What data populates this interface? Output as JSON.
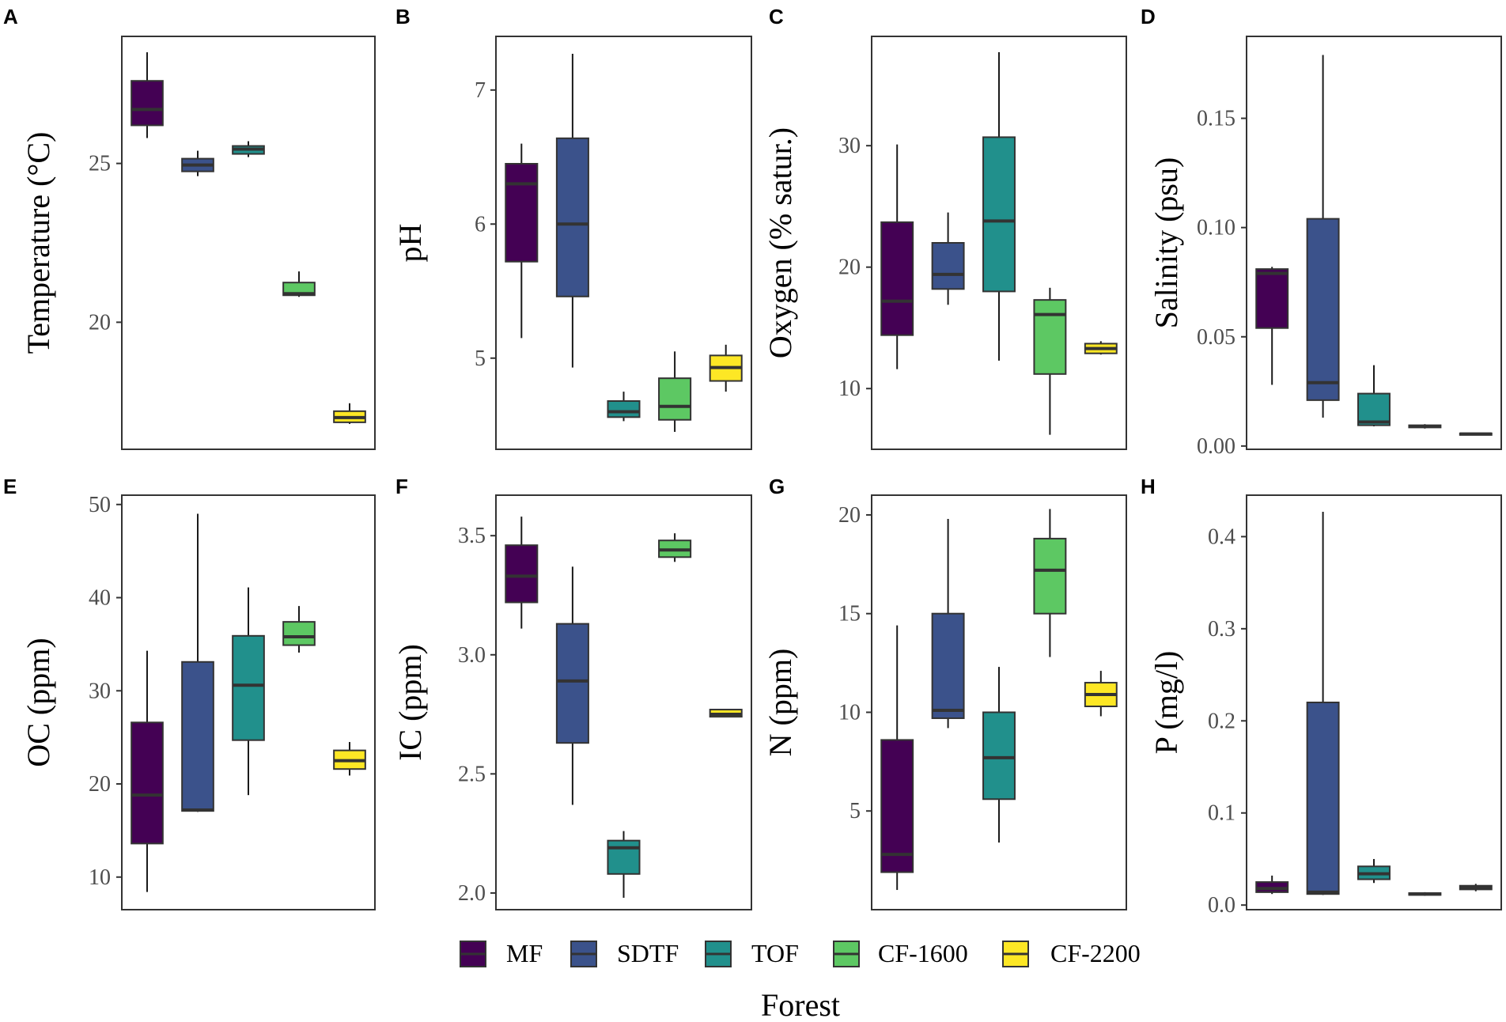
{
  "figure": {
    "x_title": "Forest",
    "legend_title": "",
    "legend_position": "bottom"
  },
  "legend": [
    {
      "name": "MF",
      "color": "#440154"
    },
    {
      "name": "SDTF",
      "color": "#3B528B"
    },
    {
      "name": "TOF",
      "color": "#21908C"
    },
    {
      "name": "CF-1600",
      "color": "#5DC863"
    },
    {
      "name": "CF-2200",
      "color": "#FDE725"
    }
  ],
  "chart_data": [
    {
      "type": "box",
      "letter": "A",
      "ylabel": "Temperature (°C)",
      "ylim": [
        16.0,
        29.0
      ],
      "ticks": [
        20,
        25
      ],
      "tick_labels": [
        "20",
        "25"
      ],
      "categories": [
        "MF",
        "SDTF",
        "TOF",
        "CF-1600",
        "CF-2200"
      ],
      "boxes": [
        {
          "category": "MF",
          "min": 25.8,
          "q1": 26.2,
          "median": 26.7,
          "q3": 27.6,
          "max": 28.5
        },
        {
          "category": "SDTF",
          "min": 24.6,
          "q1": 24.75,
          "median": 24.95,
          "q3": 25.15,
          "max": 25.4
        },
        {
          "category": "TOF",
          "min": 25.2,
          "q1": 25.3,
          "median": 25.45,
          "q3": 25.55,
          "max": 25.7
        },
        {
          "category": "CF-1600",
          "min": 20.8,
          "q1": 20.85,
          "median": 20.9,
          "q3": 21.25,
          "max": 21.6
        },
        {
          "category": "CF-2200",
          "min": 16.8,
          "q1": 16.85,
          "median": 17.0,
          "q3": 17.2,
          "max": 17.45
        }
      ]
    },
    {
      "type": "box",
      "letter": "B",
      "ylabel": "pH",
      "ylim": [
        4.32,
        7.4
      ],
      "ticks": [
        5,
        6,
        7
      ],
      "tick_labels": [
        "5",
        "6",
        "7"
      ],
      "categories": [
        "MF",
        "SDTF",
        "TOF",
        "CF-1600",
        "CF-2200"
      ],
      "boxes": [
        {
          "category": "MF",
          "min": 5.15,
          "q1": 5.72,
          "median": 6.3,
          "q3": 6.45,
          "max": 6.6
        },
        {
          "category": "SDTF",
          "min": 4.93,
          "q1": 5.46,
          "median": 6.0,
          "q3": 6.64,
          "max": 7.27
        },
        {
          "category": "TOF",
          "min": 4.53,
          "q1": 4.56,
          "median": 4.6,
          "q3": 4.68,
          "max": 4.75
        },
        {
          "category": "CF-1600",
          "min": 4.45,
          "q1": 4.54,
          "median": 4.64,
          "q3": 4.85,
          "max": 5.05
        },
        {
          "category": "CF-2200",
          "min": 4.75,
          "q1": 4.83,
          "median": 4.93,
          "q3": 5.02,
          "max": 5.1
        }
      ]
    },
    {
      "type": "box",
      "letter": "C",
      "ylabel": "Oxygen (% satur.)",
      "ylim": [
        5.0,
        39.0
      ],
      "ticks": [
        10,
        20,
        30
      ],
      "tick_labels": [
        "10",
        "20",
        "30"
      ],
      "categories": [
        "MF",
        "SDTF",
        "TOF",
        "CF-1600",
        "CF-2200"
      ],
      "boxes": [
        {
          "category": "MF",
          "min": 11.6,
          "q1": 14.4,
          "median": 17.2,
          "q3": 23.7,
          "max": 30.1
        },
        {
          "category": "SDTF",
          "min": 16.9,
          "q1": 18.2,
          "median": 19.4,
          "q3": 22.0,
          "max": 24.5
        },
        {
          "category": "TOF",
          "min": 12.3,
          "q1": 18.0,
          "median": 23.8,
          "q3": 30.7,
          "max": 37.7
        },
        {
          "category": "CF-1600",
          "min": 6.2,
          "q1": 11.2,
          "median": 16.1,
          "q3": 17.3,
          "max": 18.3
        },
        {
          "category": "CF-2200",
          "min": 12.8,
          "q1": 12.9,
          "median": 13.3,
          "q3": 13.7,
          "max": 13.9
        }
      ]
    },
    {
      "type": "box",
      "letter": "D",
      "ylabel": "Salinity (psu)",
      "ylim": [
        -0.0015,
        0.1875
      ],
      "ticks": [
        0.0,
        0.05,
        0.1,
        0.15
      ],
      "tick_labels": [
        "0.00",
        "0.05",
        "0.10",
        "0.15"
      ],
      "categories": [
        "MF",
        "SDTF",
        "TOF",
        "CF-1600",
        "CF-2200"
      ],
      "boxes": [
        {
          "category": "MF",
          "min": 0.028,
          "q1": 0.054,
          "median": 0.079,
          "q3": 0.081,
          "max": 0.082
        },
        {
          "category": "SDTF",
          "min": 0.013,
          "q1": 0.021,
          "median": 0.029,
          "q3": 0.104,
          "max": 0.179
        },
        {
          "category": "TOF",
          "min": 0.009,
          "q1": 0.0095,
          "median": 0.011,
          "q3": 0.024,
          "max": 0.037
        },
        {
          "category": "CF-1600",
          "min": 0.008,
          "q1": 0.0085,
          "median": 0.009,
          "q3": 0.0095,
          "max": 0.01
        },
        {
          "category": "CF-2200",
          "min": 0.005,
          "q1": 0.0052,
          "median": 0.0055,
          "q3": 0.0058,
          "max": 0.006
        }
      ]
    },
    {
      "type": "box",
      "letter": "E",
      "ylabel": "OC (ppm)",
      "ylim": [
        6.5,
        51.0
      ],
      "ticks": [
        10,
        20,
        30,
        40,
        50
      ],
      "tick_labels": [
        "10",
        "20",
        "30",
        "40",
        "50"
      ],
      "categories": [
        "MF",
        "SDTF",
        "TOF",
        "CF-1600",
        "CF-2200"
      ],
      "boxes": [
        {
          "category": "MF",
          "min": 8.4,
          "q1": 13.6,
          "median": 18.8,
          "q3": 26.6,
          "max": 34.3
        },
        {
          "category": "SDTF",
          "min": 17.0,
          "q1": 17.1,
          "median": 17.2,
          "q3": 33.1,
          "max": 49.0
        },
        {
          "category": "TOF",
          "min": 18.8,
          "q1": 24.7,
          "median": 30.6,
          "q3": 35.9,
          "max": 41.1
        },
        {
          "category": "CF-1600",
          "min": 34.1,
          "q1": 34.9,
          "median": 35.8,
          "q3": 37.4,
          "max": 39.1
        },
        {
          "category": "CF-2200",
          "min": 20.9,
          "q1": 21.6,
          "median": 22.5,
          "q3": 23.6,
          "max": 24.5
        }
      ]
    },
    {
      "type": "box",
      "letter": "F",
      "ylabel": "IC (ppm)",
      "ylim": [
        1.93,
        3.67
      ],
      "ticks": [
        2.0,
        2.5,
        3.0,
        3.5
      ],
      "tick_labels": [
        "2.0",
        "2.5",
        "3.0",
        "3.5"
      ],
      "categories": [
        "MF",
        "SDTF",
        "TOF",
        "CF-1600",
        "CF-2200"
      ],
      "boxes": [
        {
          "category": "MF",
          "min": 3.11,
          "q1": 3.22,
          "median": 3.33,
          "q3": 3.46,
          "max": 3.58
        },
        {
          "category": "SDTF",
          "min": 2.37,
          "q1": 2.63,
          "median": 2.89,
          "q3": 3.13,
          "max": 3.37
        },
        {
          "category": "TOF",
          "min": 1.98,
          "q1": 2.08,
          "median": 2.19,
          "q3": 2.22,
          "max": 2.26
        },
        {
          "category": "CF-1600",
          "min": 3.39,
          "q1": 3.41,
          "median": 3.44,
          "q3": 3.48,
          "max": 3.51
        },
        {
          "category": "CF-2200",
          "min": 2.74,
          "q1": 2.74,
          "median": 2.75,
          "q3": 2.77,
          "max": 2.77
        }
      ]
    },
    {
      "type": "box",
      "letter": "G",
      "ylabel": "N (ppm)",
      "ylim": [
        0.0,
        21.0
      ],
      "ticks": [
        5,
        10,
        15,
        20
      ],
      "tick_labels": [
        "5",
        "10",
        "15",
        "20"
      ],
      "categories": [
        "MF",
        "SDTF",
        "TOF",
        "CF-1600",
        "CF-2200"
      ],
      "boxes": [
        {
          "category": "MF",
          "min": 1.0,
          "q1": 1.9,
          "median": 2.8,
          "q3": 8.6,
          "max": 14.4
        },
        {
          "category": "SDTF",
          "min": 9.2,
          "q1": 9.7,
          "median": 10.1,
          "q3": 15.0,
          "max": 19.8
        },
        {
          "category": "TOF",
          "min": 3.4,
          "q1": 5.6,
          "median": 7.7,
          "q3": 10.0,
          "max": 12.3
        },
        {
          "category": "CF-1600",
          "min": 12.8,
          "q1": 15.0,
          "median": 17.2,
          "q3": 18.8,
          "max": 20.3
        },
        {
          "category": "CF-2200",
          "min": 9.8,
          "q1": 10.3,
          "median": 10.9,
          "q3": 11.5,
          "max": 12.1
        }
      ]
    },
    {
      "type": "box",
      "letter": "H",
      "ylabel": "P (mg/l)",
      "ylim": [
        -0.005,
        0.445
      ],
      "ticks": [
        0.0,
        0.1,
        0.2,
        0.3,
        0.4
      ],
      "tick_labels": [
        "0.0",
        "0.1",
        "0.2",
        "0.3",
        "0.4"
      ],
      "categories": [
        "MF",
        "SDTF",
        "TOF",
        "CF-1600",
        "CF-2200"
      ],
      "boxes": [
        {
          "category": "MF",
          "min": 0.012,
          "q1": 0.014,
          "median": 0.018,
          "q3": 0.025,
          "max": 0.032
        },
        {
          "category": "SDTF",
          "min": 0.011,
          "q1": 0.012,
          "median": 0.014,
          "q3": 0.22,
          "max": 0.427
        },
        {
          "category": "TOF",
          "min": 0.024,
          "q1": 0.028,
          "median": 0.034,
          "q3": 0.042,
          "max": 0.05
        },
        {
          "category": "CF-1600",
          "min": 0.01,
          "q1": 0.011,
          "median": 0.012,
          "q3": 0.013,
          "max": 0.014
        },
        {
          "category": "CF-2200",
          "min": 0.015,
          "q1": 0.017,
          "median": 0.019,
          "q3": 0.021,
          "max": 0.023
        }
      ]
    }
  ]
}
